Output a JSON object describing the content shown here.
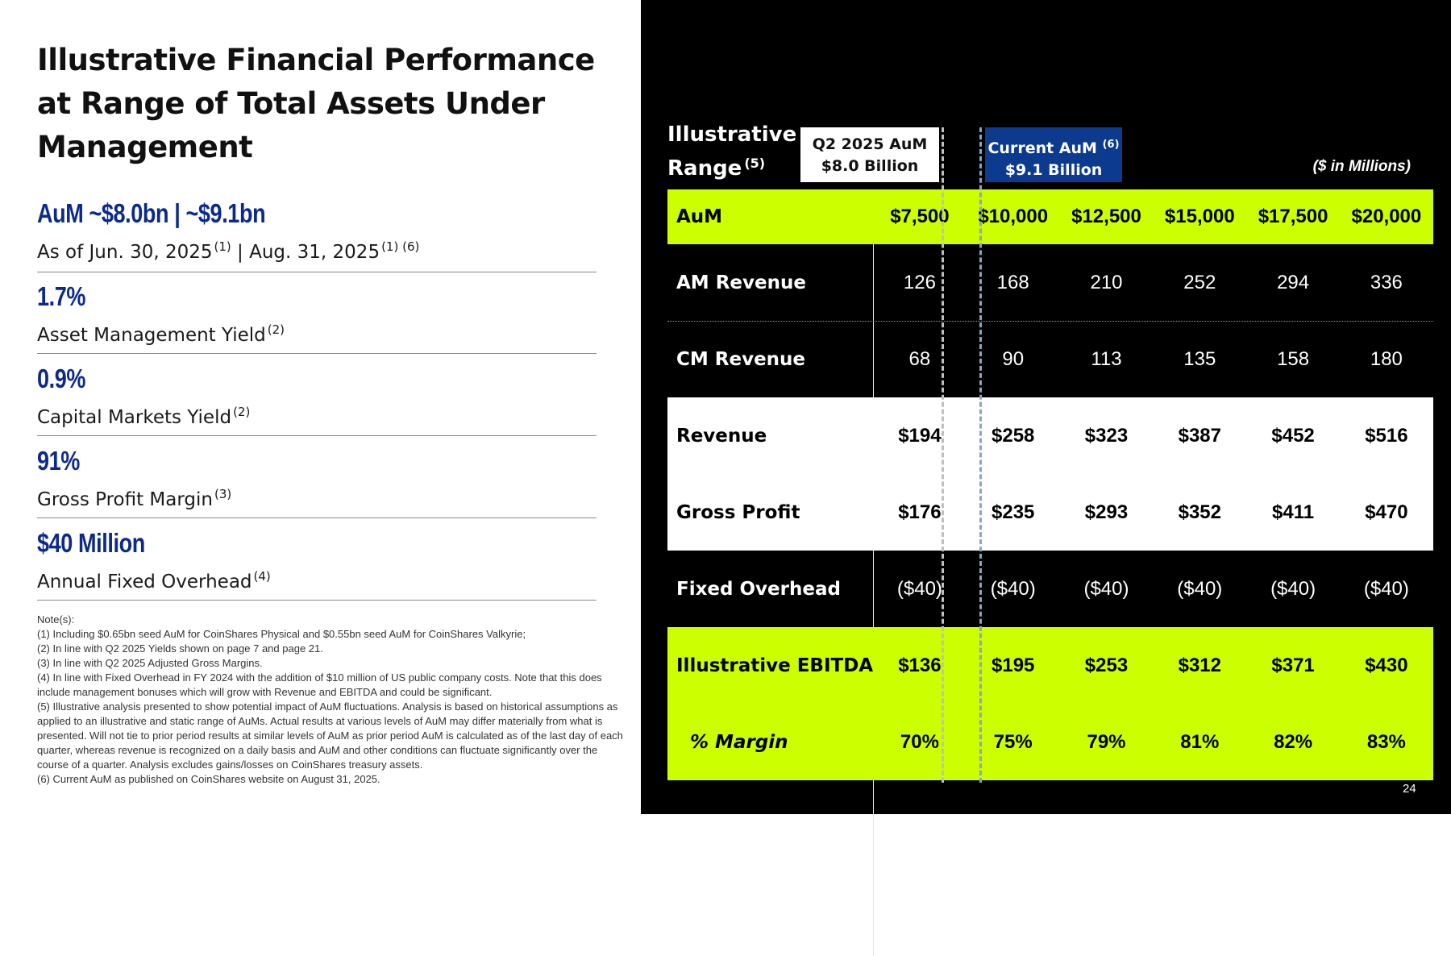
{
  "title": "Illustrative Financial Performance at Range of Total Assets Under Management",
  "stats": [
    {
      "value": "AuM ~$8.0bn | ~$9.1bn",
      "label": "As of Jun. 30, 2025",
      "sup": "(1)",
      "label2": " | Aug. 31, 2025",
      "sup2": "(1) (6)"
    },
    {
      "value": "1.7%",
      "label": "Asset Management Yield",
      "sup": "(2)"
    },
    {
      "value": "0.9%",
      "label": "Capital Markets Yield",
      "sup": "(2)"
    },
    {
      "value": "91%",
      "label": "Gross Profit Margin",
      "sup": "(3)"
    },
    {
      "value": "$40 Million",
      "label": "Annual Fixed Overhead",
      "sup": "(4)"
    }
  ],
  "notes": [
    "Note(s):",
    "(1) Including $0.65bn seed AuM for CoinShares Physical and $0.55bn seed AuM for CoinShares Valkyrie;",
    "(2) In line with Q2 2025 Yields shown on page 7 and page 21.",
    "(3) In line with Q2 2025 Adjusted Gross Margins.",
    "(4) In line with Fixed Overhead in FY 2024 with the addition of $10 million of US public company costs. Note that this does include management bonuses which will grow with Revenue and EBITDA and could be significant.",
    "(5) Illustrative analysis presented to show potential impact of AuM fluctuations. Analysis is based on historical assumptions as applied to an illustrative and static range of AuMs. Actual results at various levels of AuM may differ materially from what is presented. Will not tie to prior period results at similar levels of AuM as prior period AuM is calculated as of the last day of each quarter, whereas revenue is recognized on a daily basis and AuM and other conditions can fluctuate significantly over the course of a quarter. Analysis excludes gains/losses on CoinShares treasury assets.",
    "(6) Current AuM as published on CoinShares website on August 31, 2025."
  ],
  "range": {
    "line1": "Illustrative",
    "line2": "Range",
    "sup": "(5)"
  },
  "callouts": {
    "q2": {
      "line1": "Q2 2025 AuM",
      "line2": "$8.0 Billion"
    },
    "current": {
      "line1": "Current AuM",
      "sup": "(6)",
      "line2": "$9.1 Billion"
    }
  },
  "units": "($ in Millions)",
  "table": {
    "rows": [
      {
        "label": "AuM",
        "values": [
          "$7,500",
          "$10,000",
          "$12,500",
          "$15,000",
          "$17,500",
          "$20,000"
        ]
      },
      {
        "label": "AM Revenue",
        "values": [
          "126",
          "168",
          "210",
          "252",
          "294",
          "336"
        ]
      },
      {
        "label": "CM Revenue",
        "values": [
          "68",
          "90",
          "113",
          "135",
          "158",
          "180"
        ]
      },
      {
        "label": "Revenue",
        "values": [
          "$194",
          "$258",
          "$323",
          "$387",
          "$452",
          "$516"
        ]
      },
      {
        "label": "Gross Profit",
        "values": [
          "$176",
          "$235",
          "$293",
          "$352",
          "$411",
          "$470"
        ]
      },
      {
        "label": "Fixed Overhead",
        "values": [
          "($40)",
          "($40)",
          "($40)",
          "($40)",
          "($40)",
          "($40)"
        ]
      },
      {
        "label": "Illustrative EBITDA",
        "values": [
          "$136",
          "$195",
          "$253",
          "$312",
          "$371",
          "$430"
        ]
      },
      {
        "label": "% Margin",
        "values": [
          "70%",
          "75%",
          "79%",
          "81%",
          "82%",
          "83%"
        ]
      }
    ]
  },
  "colors": {
    "lime": "#ccff00",
    "navy": "#0b3a8e",
    "stat_blue": "#0b2a8c"
  },
  "page_number": "24"
}
